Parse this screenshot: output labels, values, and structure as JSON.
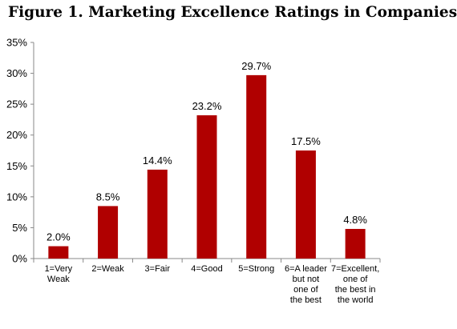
{
  "figure": {
    "title": "Figure 1.  Marketing Excellence Ratings in Companies"
  },
  "colors": {
    "bar": "#b00000",
    "axis": "#888888",
    "text": "#000000"
  },
  "chart_data": {
    "type": "bar",
    "title": "Figure 1.  Marketing Excellence Ratings in Companies",
    "categories": [
      [
        "1=Very",
        "Weak"
      ],
      [
        "2=Weak"
      ],
      [
        "3=Fair"
      ],
      [
        "4=Good"
      ],
      [
        "5=Strong"
      ],
      [
        "6=A leader",
        "but not",
        "one of",
        "the best"
      ],
      [
        "7=Excellent,",
        "one of",
        "the best in",
        "the world"
      ]
    ],
    "values": [
      2.0,
      8.5,
      14.4,
      23.2,
      29.7,
      17.5,
      4.8
    ],
    "data_labels": [
      "2.0%",
      "8.5%",
      "14.4%",
      "23.2%",
      "29.7%",
      "17.5%",
      "4.8%"
    ],
    "ylim": [
      0,
      35
    ],
    "yticks": [
      0,
      5,
      10,
      15,
      20,
      25,
      30,
      35
    ],
    "ytick_labels": [
      "0%",
      "5%",
      "10%",
      "15%",
      "20%",
      "25%",
      "30%",
      "35%"
    ],
    "xlabel": "",
    "ylabel": "",
    "grid": false,
    "legend": "none"
  }
}
